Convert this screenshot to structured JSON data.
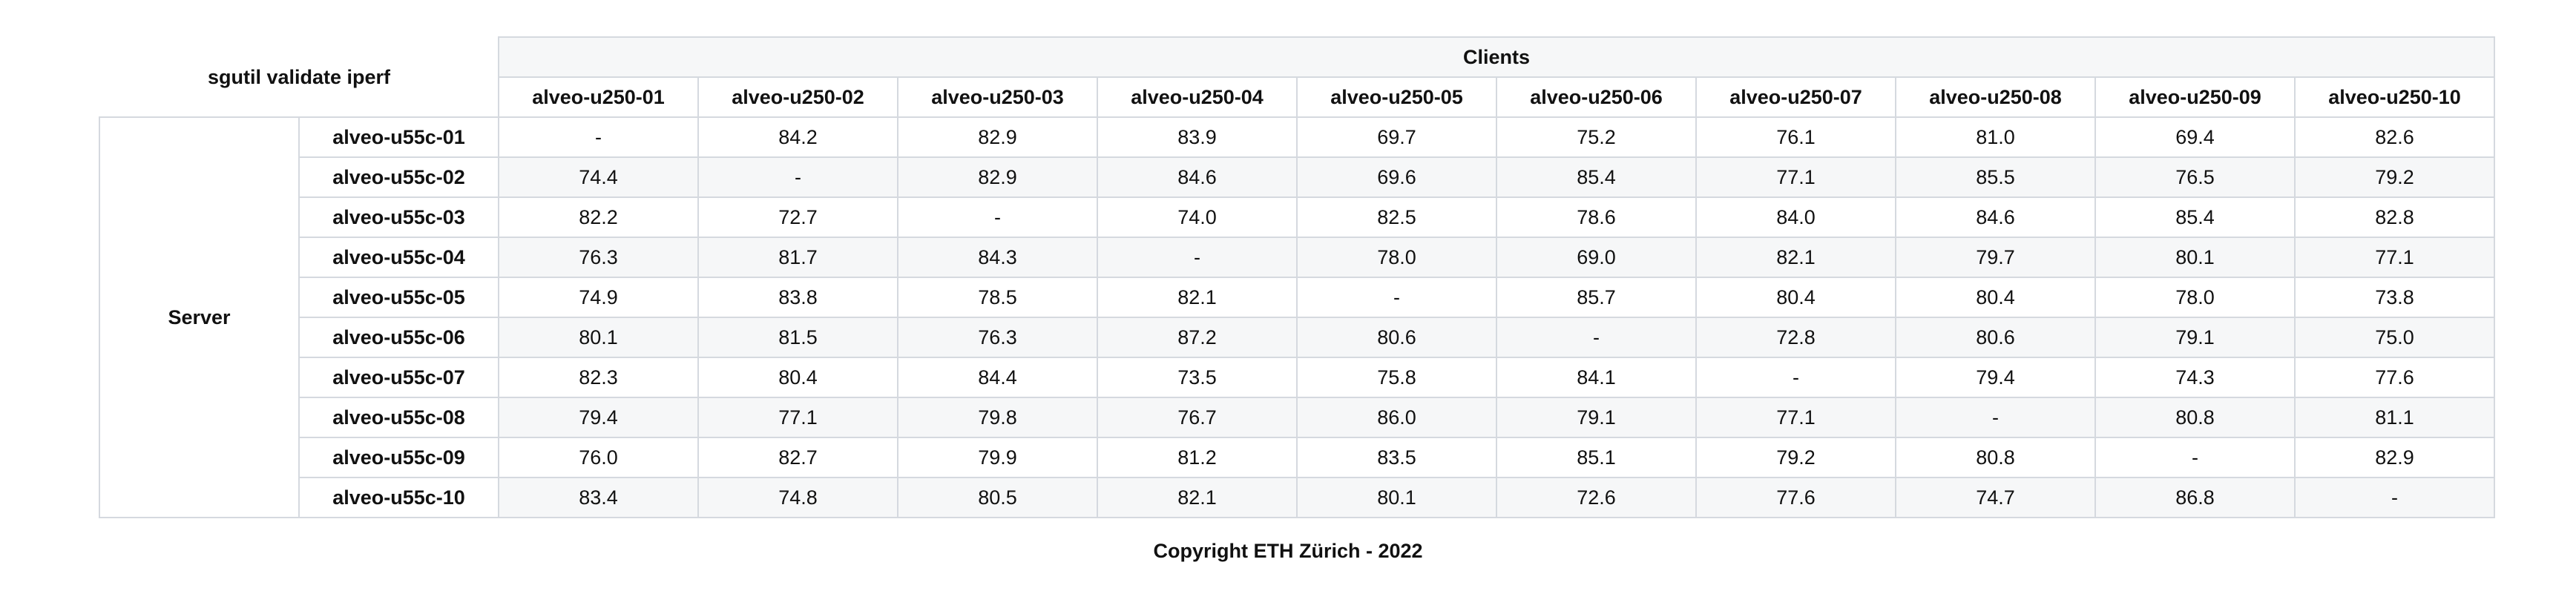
{
  "table": {
    "caption": "sgutil validate iperf",
    "clients_label": "Clients",
    "server_label": "Server",
    "columns": [
      "alveo-u250-01",
      "alveo-u250-02",
      "alveo-u250-03",
      "alveo-u250-04",
      "alveo-u250-05",
      "alveo-u250-06",
      "alveo-u250-07",
      "alveo-u250-08",
      "alveo-u250-09",
      "alveo-u250-10"
    ],
    "rows": [
      {
        "label": "alveo-u55c-01",
        "values": [
          "-",
          "84.2",
          "82.9",
          "83.9",
          "69.7",
          "75.2",
          "76.1",
          "81.0",
          "69.4",
          "82.6"
        ]
      },
      {
        "label": "alveo-u55c-02",
        "values": [
          "74.4",
          "-",
          "82.9",
          "84.6",
          "69.6",
          "85.4",
          "77.1",
          "85.5",
          "76.5",
          "79.2"
        ]
      },
      {
        "label": "alveo-u55c-03",
        "values": [
          "82.2",
          "72.7",
          "-",
          "74.0",
          "82.5",
          "78.6",
          "84.0",
          "84.6",
          "85.4",
          "82.8"
        ]
      },
      {
        "label": "alveo-u55c-04",
        "values": [
          "76.3",
          "81.7",
          "84.3",
          "-",
          "78.0",
          "69.0",
          "82.1",
          "79.7",
          "80.1",
          "77.1"
        ]
      },
      {
        "label": "alveo-u55c-05",
        "values": [
          "74.9",
          "83.8",
          "78.5",
          "82.1",
          "-",
          "85.7",
          "80.4",
          "80.4",
          "78.0",
          "73.8"
        ]
      },
      {
        "label": "alveo-u55c-06",
        "values": [
          "80.1",
          "81.5",
          "76.3",
          "87.2",
          "80.6",
          "-",
          "72.8",
          "80.6",
          "79.1",
          "75.0"
        ]
      },
      {
        "label": "alveo-u55c-07",
        "values": [
          "82.3",
          "80.4",
          "84.4",
          "73.5",
          "75.8",
          "84.1",
          "-",
          "79.4",
          "74.3",
          "77.6"
        ]
      },
      {
        "label": "alveo-u55c-08",
        "values": [
          "79.4",
          "77.1",
          "79.8",
          "76.7",
          "86.0",
          "79.1",
          "77.1",
          "-",
          "80.8",
          "81.1"
        ]
      },
      {
        "label": "alveo-u55c-09",
        "values": [
          "76.0",
          "82.7",
          "79.9",
          "81.2",
          "83.5",
          "85.1",
          "79.2",
          "80.8",
          "-",
          "82.9"
        ]
      },
      {
        "label": "alveo-u55c-10",
        "values": [
          "83.4",
          "74.8",
          "80.5",
          "82.1",
          "80.1",
          "72.6",
          "77.6",
          "74.7",
          "86.8",
          "-"
        ]
      }
    ]
  },
  "footer": {
    "copyright": "Copyright ETH Zürich - 2022"
  },
  "colors": {
    "border": "#d5d9df",
    "stripe": "#f6f7f8",
    "text": "#111111"
  }
}
